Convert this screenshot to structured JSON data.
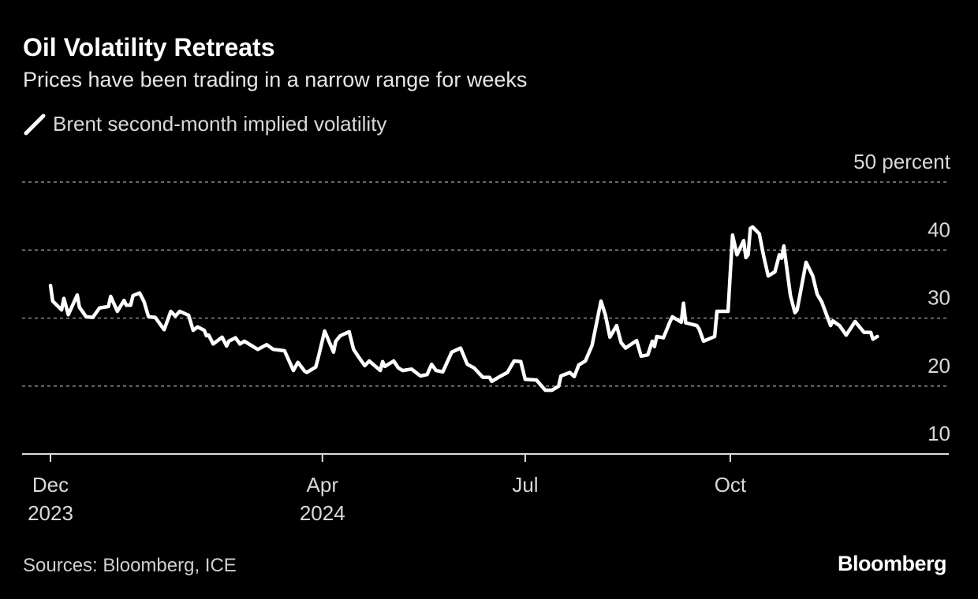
{
  "title": "Oil Volatility Retreats",
  "subtitle": "Prices have been trading in a narrow range for weeks",
  "source": "Sources: Bloomberg, ICE",
  "logo": "Bloomberg",
  "colors": {
    "background": "#000000",
    "line": "#ffffff",
    "grid": "#8a8a8a",
    "text": "#d9d9d9"
  },
  "chart_data": {
    "type": "line",
    "title": "Oil Volatility Retreats",
    "subtitle": "Prices have been trading in a narrow range for weeks",
    "xlabel": "",
    "ylabel": "percent",
    "x_unit": "days since 2023-12-01",
    "ylim": [
      10,
      50
    ],
    "grid": true,
    "legend_position": "top-left",
    "y_ticks": [
      {
        "value": 50,
        "label": "50 percent"
      },
      {
        "value": 40,
        "label": "40"
      },
      {
        "value": 30,
        "label": "30"
      },
      {
        "value": 20,
        "label": "20"
      },
      {
        "value": 10,
        "label": "10"
      }
    ],
    "x_ticks": [
      {
        "value": 0,
        "label": "Dec",
        "sublabel": "2023"
      },
      {
        "value": 122,
        "label": "Apr",
        "sublabel": "2024"
      },
      {
        "value": 213,
        "label": "Jul",
        "sublabel": ""
      },
      {
        "value": 305,
        "label": "Oct",
        "sublabel": ""
      }
    ],
    "series": [
      {
        "name": "Brent second-month implied volatility",
        "x": [
          0,
          1,
          5,
          6,
          8,
          12,
          13,
          16,
          19,
          22,
          26,
          27,
          30,
          33,
          34,
          36,
          37,
          40,
          42,
          44,
          47,
          51,
          54,
          56,
          58,
          62,
          64,
          66,
          69,
          70,
          71,
          73,
          77,
          79,
          80,
          83,
          85,
          87,
          93,
          97,
          100,
          105,
          109,
          111,
          114,
          115,
          119,
          120,
          123,
          127,
          128,
          130,
          134,
          136,
          138,
          141,
          143,
          148,
          149,
          150,
          154,
          156,
          158,
          162,
          166,
          169,
          171,
          173,
          176,
          180,
          184,
          187,
          190,
          194,
          197,
          198,
          201,
          205,
          208,
          211,
          213,
          218,
          222,
          225,
          228,
          229,
          233,
          235,
          237,
          240,
          243,
          247,
          249,
          251,
          254,
          256,
          258,
          263,
          265,
          268,
          270,
          271,
          272,
          275,
          278,
          279,
          283,
          284,
          285,
          290,
          291,
          293,
          298,
          299,
          304,
          305,
          306,
          308,
          311,
          312,
          313,
          314,
          315,
          318,
          320,
          322,
          325,
          327,
          328,
          329,
          332,
          334,
          335,
          339,
          342,
          344,
          346,
          350,
          351,
          354,
          357,
          361,
          365,
          368,
          369,
          371
        ],
        "values": [
          34.8,
          32.5,
          31.2,
          32.9,
          30.5,
          33.4,
          31.6,
          30.2,
          30.1,
          31.5,
          31.7,
          33.2,
          31.0,
          32.6,
          31.9,
          31.9,
          33.3,
          33.7,
          32.4,
          30.2,
          30.1,
          28.3,
          31.0,
          30.3,
          31.0,
          30.4,
          28.2,
          28.7,
          28.2,
          27.4,
          27.5,
          26.2,
          27.2,
          25.9,
          26.6,
          27.1,
          26.2,
          26.6,
          25.4,
          26.1,
          25.4,
          25.2,
          22.3,
          23.5,
          22.2,
          22.0,
          22.8,
          24.0,
          28.1,
          25.0,
          26.6,
          27.4,
          28.0,
          25.4,
          24.4,
          23.0,
          23.7,
          22.3,
          23.6,
          22.9,
          23.7,
          22.7,
          22.3,
          22.5,
          21.5,
          21.7,
          23.2,
          22.3,
          22.1,
          25.0,
          25.6,
          23.2,
          22.7,
          21.3,
          21.3,
          20.7,
          21.3,
          22.0,
          23.7,
          23.6,
          21.0,
          20.9,
          19.4,
          19.4,
          20.0,
          21.5,
          22.0,
          21.4,
          23.1,
          23.7,
          26.0,
          32.5,
          30.4,
          27.2,
          28.9,
          26.4,
          25.6,
          26.7,
          24.4,
          24.6,
          26.6,
          25.8,
          27.3,
          27.1,
          29.5,
          30.2,
          29.4,
          32.2,
          29.3,
          28.9,
          28.4,
          26.6,
          27.3,
          31.0,
          31.0,
          36.6,
          42.2,
          39.3,
          41.4,
          38.9,
          39.3,
          43.2,
          43.4,
          42.4,
          39.1,
          36.2,
          36.8,
          39.3,
          38.8,
          40.6,
          33.3,
          30.8,
          31.2,
          38.2,
          36.2,
          33.5,
          32.4,
          28.9,
          29.6,
          28.9,
          27.5,
          29.5,
          27.9,
          27.9,
          26.9,
          27.3
        ]
      }
    ]
  }
}
